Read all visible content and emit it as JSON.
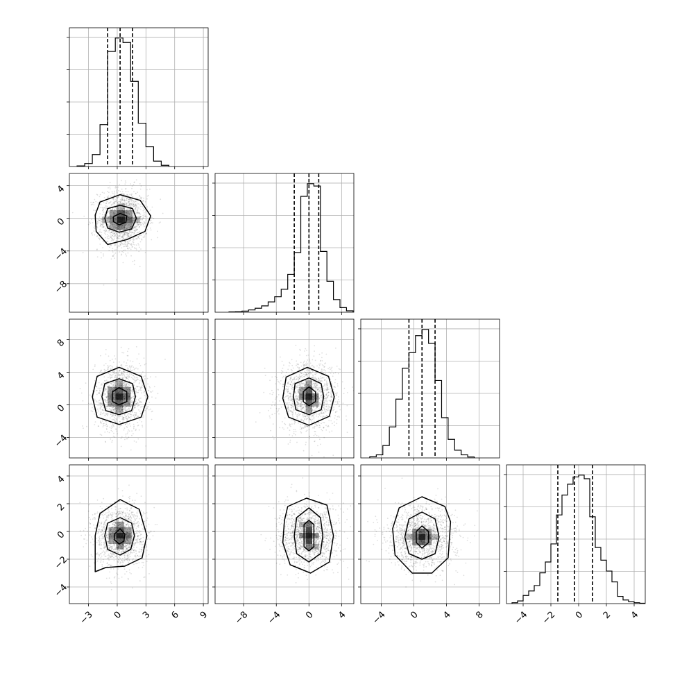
{
  "chart_data": {
    "type": "corner",
    "title": "",
    "parameter_labels": [
      "",
      "",
      "",
      ""
    ],
    "axis_ranges": [
      [
        -5,
        9.5
      ],
      [
        -11.5,
        5.5
      ],
      [
        -6.5,
        10.5
      ],
      [
        -5.2,
        4.8
      ]
    ],
    "ticks": [
      [
        -3,
        0,
        3,
        6,
        9
      ],
      [
        -8,
        -4,
        0,
        4
      ],
      [
        -4,
        0,
        4,
        8
      ],
      [
        -4,
        -2,
        0,
        2,
        4
      ]
    ],
    "tick_labels": [
      [
        "−3",
        "0",
        "3",
        "6",
        "9"
      ],
      [
        "−8",
        "−4",
        "0",
        "4"
      ],
      [
        "−4",
        "0",
        "4",
        "8"
      ],
      [
        "−4",
        "−2",
        "0",
        "2",
        "4"
      ]
    ],
    "grid": true,
    "histograms": [
      {
        "param": 0,
        "bins": [
          -4.2,
          -3.4,
          -2.6,
          -1.8,
          -1.0,
          -0.2,
          0.6,
          1.4,
          2.2,
          3.0,
          3.8,
          4.6,
          5.4
        ],
        "counts": [
          2,
          10,
          40,
          140,
          385,
          430,
          415,
          285,
          145,
          66,
          18,
          4
        ],
        "quantiles": [
          -1.0,
          0.3,
          1.6
        ]
      },
      {
        "param": 1,
        "bins": [
          -9.8,
          -9.0,
          -8.2,
          -7.4,
          -6.6,
          -5.8,
          -5.0,
          -4.2,
          -3.4,
          -2.6,
          -1.8,
          -1.0,
          -0.2,
          0.6,
          1.4,
          2.2,
          3.0,
          3.8,
          4.6,
          5.4
        ],
        "counts": [
          3,
          5,
          10,
          20,
          35,
          55,
          90,
          135,
          200,
          330,
          520,
          1010,
          1120,
          1100,
          530,
          270,
          110,
          40,
          12
        ],
        "quantiles": [
          -1.8,
          0.0,
          1.2
        ]
      },
      {
        "param": 2,
        "bins": [
          -5.4,
          -4.6,
          -3.8,
          -3.0,
          -2.2,
          -1.4,
          -0.6,
          0.2,
          1.0,
          1.8,
          2.6,
          3.4,
          4.2,
          5.0,
          5.8,
          6.6,
          7.4
        ],
        "counts": [
          4,
          10,
          40,
          100,
          190,
          290,
          340,
          395,
          415,
          370,
          250,
          130,
          60,
          25,
          10,
          3
        ],
        "quantiles": [
          -0.6,
          1.0,
          2.6
        ]
      },
      {
        "param": 3,
        "bins": [
          -4.8,
          -4.4,
          -4.0,
          -3.6,
          -3.2,
          -2.8,
          -2.4,
          -2.0,
          -1.6,
          -1.2,
          -0.8,
          -0.4,
          0.0,
          0.4,
          0.8,
          1.2,
          1.6,
          2.0,
          2.4,
          2.8,
          3.2,
          3.6,
          4.0,
          4.4,
          4.8
        ],
        "counts": [
          5,
          15,
          45,
          70,
          100,
          170,
          230,
          330,
          490,
          600,
          660,
          700,
          710,
          690,
          480,
          310,
          240,
          180,
          120,
          40,
          20,
          10,
          5,
          2
        ],
        "quantiles": [
          -1.5,
          -0.3,
          1.0
        ]
      }
    ],
    "joint": [
      {
        "x": 0,
        "y": 1,
        "center": [
          0.6,
          -0.2
        ],
        "sd": [
          1.3,
          1.9
        ],
        "density_cells": [
          [
            0.4,
            -0.2,
            1.0
          ],
          [
            0.4,
            0.6,
            0.75
          ],
          [
            1.2,
            -0.2,
            0.65
          ],
          [
            -0.4,
            -0.2,
            0.55
          ],
          [
            0.4,
            -1.0,
            0.55
          ],
          [
            1.2,
            0.6,
            0.45
          ],
          [
            -0.4,
            0.6,
            0.45
          ],
          [
            1.2,
            -1.0,
            0.4
          ],
          [
            -0.4,
            -1.0,
            0.4
          ],
          [
            2.0,
            -0.2,
            0.3
          ],
          [
            -1.2,
            -0.2,
            0.3
          ],
          [
            0.4,
            1.4,
            0.3
          ]
        ],
        "contours": [
          [
            [
              -0.4,
              0.2
            ],
            [
              0.3,
              0.6
            ],
            [
              1.0,
              0.3
            ],
            [
              0.9,
              -0.5
            ],
            [
              0.2,
              -0.8
            ],
            [
              -0.4,
              -0.4
            ]
          ],
          [
            [
              -1.0,
              1.2
            ],
            [
              0.3,
              1.6
            ],
            [
              1.6,
              1.2
            ],
            [
              2.0,
              0.0
            ],
            [
              1.5,
              -1.3
            ],
            [
              0.2,
              -1.7
            ],
            [
              -1.0,
              -1.2
            ],
            [
              -1.3,
              0.0
            ]
          ],
          [
            [
              -1.8,
              2.0
            ],
            [
              0.3,
              2.9
            ],
            [
              2.4,
              2.2
            ],
            [
              3.5,
              0.3
            ],
            [
              2.9,
              -1.6
            ],
            [
              1.0,
              -2.6
            ],
            [
              -1.0,
              -3.2
            ],
            [
              -2.2,
              -1.6
            ],
            [
              -2.3,
              0.4
            ]
          ]
        ]
      },
      {
        "x": 0,
        "y": 2,
        "center": [
          0.3,
          1.0
        ],
        "sd": [
          1.3,
          2.1
        ],
        "density_cells": [
          [
            0.2,
            1.0,
            1.0
          ],
          [
            0.2,
            1.8,
            0.7
          ],
          [
            0.2,
            0.2,
            0.7
          ],
          [
            1.0,
            1.0,
            0.65
          ],
          [
            -0.6,
            1.0,
            0.6
          ],
          [
            1.0,
            0.2,
            0.45
          ],
          [
            -0.6,
            1.8,
            0.45
          ],
          [
            1.0,
            1.8,
            0.45
          ],
          [
            -0.6,
            0.2,
            0.45
          ],
          [
            0.2,
            2.6,
            0.35
          ],
          [
            0.2,
            -0.6,
            0.35
          ]
        ],
        "contours": [
          [
            [
              -0.5,
              1.6
            ],
            [
              0.2,
              2.1
            ],
            [
              1.0,
              1.6
            ],
            [
              1.0,
              0.4
            ],
            [
              0.2,
              0.0
            ],
            [
              -0.5,
              0.4
            ]
          ],
          [
            [
              -1.3,
              2.6
            ],
            [
              0.2,
              3.2
            ],
            [
              1.6,
              2.6
            ],
            [
              1.9,
              1.0
            ],
            [
              1.5,
              -0.7
            ],
            [
              0.2,
              -1.2
            ],
            [
              -1.2,
              -0.7
            ],
            [
              -1.6,
              1.0
            ]
          ],
          [
            [
              -2.1,
              3.5
            ],
            [
              0.2,
              4.6
            ],
            [
              2.5,
              3.5
            ],
            [
              3.2,
              1.0
            ],
            [
              2.5,
              -1.5
            ],
            [
              0.2,
              -2.4
            ],
            [
              -2.1,
              -1.5
            ],
            [
              -2.6,
              1.0
            ]
          ]
        ]
      },
      {
        "x": 1,
        "y": 2,
        "center": [
          0.0,
          1.0
        ],
        "sd": [
          1.8,
          2.1
        ],
        "density_cells": [
          [
            0.0,
            1.0,
            1.0
          ],
          [
            0.0,
            1.8,
            0.7
          ],
          [
            0.0,
            0.2,
            0.7
          ],
          [
            -0.8,
            1.0,
            0.55
          ],
          [
            0.8,
            1.0,
            0.55
          ],
          [
            0.0,
            2.6,
            0.4
          ],
          [
            0.0,
            -0.6,
            0.4
          ],
          [
            -0.8,
            1.8,
            0.4
          ],
          [
            0.8,
            0.2,
            0.4
          ]
        ],
        "contours": [
          [
            [
              -0.7,
              1.6
            ],
            [
              0.0,
              2.2
            ],
            [
              0.8,
              1.6
            ],
            [
              0.8,
              0.4
            ],
            [
              0.0,
              -0.1
            ],
            [
              -0.7,
              0.4
            ]
          ],
          [
            [
              -1.7,
              2.6
            ],
            [
              0.0,
              3.3
            ],
            [
              1.5,
              2.6
            ],
            [
              1.8,
              1.0
            ],
            [
              1.5,
              -0.6
            ],
            [
              0.0,
              -1.2
            ],
            [
              -1.6,
              -0.6
            ],
            [
              -1.9,
              1.0
            ]
          ],
          [
            [
              -2.8,
              3.4
            ],
            [
              -0.2,
              4.6
            ],
            [
              2.4,
              3.5
            ],
            [
              3.1,
              1.0
            ],
            [
              2.5,
              -1.4
            ],
            [
              0.0,
              -2.5
            ],
            [
              -2.5,
              -1.5
            ],
            [
              -3.2,
              0.8
            ]
          ]
        ]
      },
      {
        "x": 0,
        "y": 3,
        "center": [
          0.3,
          -0.3
        ],
        "sd": [
          1.3,
          1.1
        ],
        "density_cells": [
          [
            0.3,
            -0.3,
            1.0
          ],
          [
            0.3,
            0.1,
            0.7
          ],
          [
            0.3,
            -0.7,
            0.7
          ],
          [
            1.1,
            -0.3,
            0.6
          ],
          [
            -0.5,
            -0.3,
            0.55
          ],
          [
            0.3,
            0.5,
            0.45
          ],
          [
            0.3,
            -1.1,
            0.45
          ],
          [
            1.1,
            0.1,
            0.4
          ],
          [
            -0.5,
            0.1,
            0.4
          ],
          [
            1.1,
            -0.7,
            0.4
          ],
          [
            -0.5,
            -0.7,
            0.4
          ]
        ],
        "contours": [
          [
            [
              -0.3,
              -0.2
            ],
            [
              0.3,
              0.2
            ],
            [
              0.8,
              -0.2
            ],
            [
              0.7,
              -0.7
            ],
            [
              0.2,
              -0.9
            ],
            [
              -0.3,
              -0.6
            ]
          ],
          [
            [
              -1.0,
              0.6
            ],
            [
              0.3,
              1.0
            ],
            [
              1.5,
              0.6
            ],
            [
              1.8,
              -0.3
            ],
            [
              1.4,
              -1.3
            ],
            [
              0.3,
              -1.7
            ],
            [
              -1.0,
              -1.3
            ],
            [
              -1.3,
              -0.3
            ]
          ],
          [
            [
              -1.8,
              1.3
            ],
            [
              0.3,
              2.3
            ],
            [
              2.3,
              1.6
            ],
            [
              3.1,
              -0.3
            ],
            [
              2.6,
              -1.9
            ],
            [
              0.8,
              -2.5
            ],
            [
              -1.2,
              -2.6
            ],
            [
              -2.3,
              -2.9
            ],
            [
              -2.3,
              -0.3
            ]
          ]
        ]
      },
      {
        "x": 1,
        "y": 3,
        "center": [
          0.0,
          -0.3
        ],
        "sd": [
          1.8,
          1.1
        ],
        "density_cells": [
          [
            0.0,
            -0.3,
            1.0
          ],
          [
            0.0,
            0.1,
            0.8
          ],
          [
            0.0,
            -0.7,
            0.8
          ],
          [
            0.0,
            0.5,
            0.55
          ],
          [
            0.0,
            -1.1,
            0.55
          ],
          [
            -0.8,
            -0.3,
            0.5
          ],
          [
            0.8,
            -0.3,
            0.5
          ],
          [
            -0.8,
            0.5,
            0.35
          ],
          [
            0.8,
            -1.1,
            0.35
          ]
        ],
        "contours": [
          [
            [
              -0.6,
              0.5
            ],
            [
              0.0,
              0.8
            ],
            [
              0.6,
              0.5
            ],
            [
              0.6,
              -1.1
            ],
            [
              0.0,
              -1.4
            ],
            [
              -0.6,
              -1.1
            ]
          ],
          [
            [
              -1.5,
              1.0
            ],
            [
              0.0,
              1.7
            ],
            [
              1.4,
              1.0
            ],
            [
              1.7,
              -0.3
            ],
            [
              1.4,
              -1.6
            ],
            [
              0.0,
              -2.2
            ],
            [
              -1.5,
              -1.6
            ],
            [
              -1.8,
              -0.3
            ]
          ],
          [
            [
              -2.6,
              1.8
            ],
            [
              -0.3,
              2.4
            ],
            [
              2.2,
              1.9
            ],
            [
              3.0,
              -0.3
            ],
            [
              2.5,
              -2.2
            ],
            [
              0.2,
              -3.0
            ],
            [
              -2.3,
              -2.4
            ],
            [
              -3.2,
              -0.8
            ],
            [
              -3.0,
              0.8
            ]
          ]
        ]
      },
      {
        "x": 2,
        "y": 3,
        "center": [
          1.0,
          -0.4
        ],
        "sd": [
          2.1,
          1.1
        ],
        "density_cells": [
          [
            1.0,
            -0.4,
            1.0
          ],
          [
            1.0,
            0.0,
            0.7
          ],
          [
            1.0,
            -0.8,
            0.7
          ],
          [
            1.8,
            -0.4,
            0.6
          ],
          [
            0.2,
            -0.4,
            0.6
          ],
          [
            1.8,
            0.0,
            0.45
          ],
          [
            0.2,
            0.0,
            0.45
          ],
          [
            1.8,
            -0.8,
            0.45
          ],
          [
            0.2,
            -0.8,
            0.45
          ],
          [
            2.6,
            -0.4,
            0.3
          ],
          [
            -0.6,
            -0.4,
            0.3
          ]
        ],
        "contours": [
          [
            [
              0.3,
              0.0
            ],
            [
              1.0,
              0.4
            ],
            [
              1.8,
              0.0
            ],
            [
              1.8,
              -0.8
            ],
            [
              1.0,
              -1.2
            ],
            [
              0.3,
              -0.8
            ]
          ],
          [
            [
              -0.6,
              0.9
            ],
            [
              1.0,
              1.4
            ],
            [
              2.6,
              0.9
            ],
            [
              3.1,
              -0.4
            ],
            [
              2.6,
              -1.6
            ],
            [
              1.0,
              -2.0
            ],
            [
              -0.6,
              -1.6
            ],
            [
              -1.1,
              -0.4
            ]
          ],
          [
            [
              -1.8,
              1.7
            ],
            [
              1.0,
              2.5
            ],
            [
              3.8,
              1.8
            ],
            [
              4.5,
              0.7
            ],
            [
              4.2,
              -1.9
            ],
            [
              2.2,
              -3.0
            ],
            [
              -0.2,
              -3.0
            ],
            [
              -2.3,
              -1.7
            ],
            [
              -2.6,
              0.2
            ]
          ]
        ]
      }
    ]
  }
}
